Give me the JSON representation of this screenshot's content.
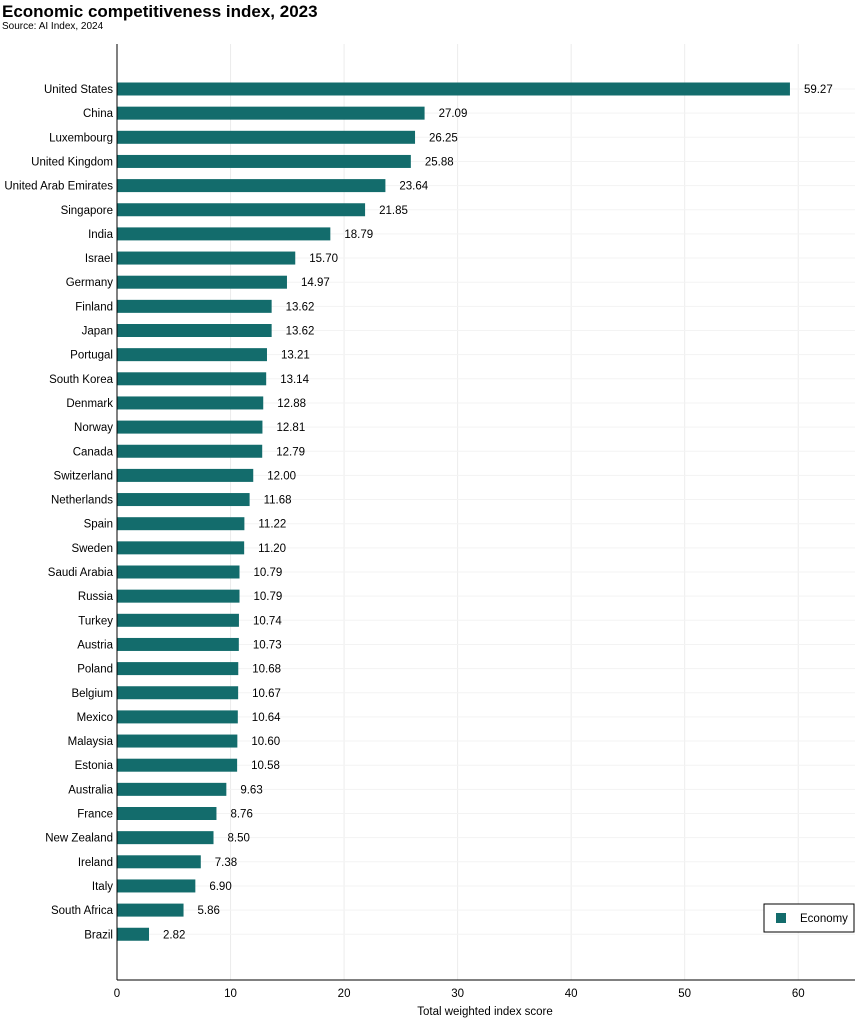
{
  "chart_data": {
    "type": "bar",
    "orientation": "horizontal",
    "title": "Economic competitiveness index, 2023",
    "subtitle": "Source: AI Index, 2024",
    "xlabel": "Total weighted index score",
    "ylabel": "",
    "xlim": [
      0,
      65
    ],
    "xticks": [
      0,
      10,
      20,
      30,
      40,
      50,
      60
    ],
    "grid": true,
    "legend_position": "bottom-right",
    "bar_color": "#136c6c",
    "categories": [
      "United States",
      "China",
      "Luxembourg",
      "United Kingdom",
      "United Arab Emirates",
      "Singapore",
      "India",
      "Israel",
      "Germany",
      "Finland",
      "Japan",
      "Portugal",
      "South Korea",
      "Denmark",
      "Norway",
      "Canada",
      "Switzerland",
      "Netherlands",
      "Spain",
      "Sweden",
      "Saudi Arabia",
      "Russia",
      "Turkey",
      "Austria",
      "Poland",
      "Belgium",
      "Mexico",
      "Malaysia",
      "Estonia",
      "Australia",
      "France",
      "New Zealand",
      "Ireland",
      "Italy",
      "South Africa",
      "Brazil"
    ],
    "series": [
      {
        "name": "Economy",
        "values": [
          59.27,
          27.09,
          26.25,
          25.88,
          23.64,
          21.85,
          18.79,
          15.7,
          14.97,
          13.62,
          13.62,
          13.21,
          13.14,
          12.88,
          12.81,
          12.79,
          12.0,
          11.68,
          11.22,
          11.2,
          10.79,
          10.79,
          10.74,
          10.73,
          10.68,
          10.67,
          10.64,
          10.6,
          10.58,
          9.63,
          8.76,
          8.5,
          7.38,
          6.9,
          5.86,
          2.82
        ],
        "labels": [
          "59.27",
          "27.09",
          "26.25",
          "25.88",
          "23.64",
          "21.85",
          "18.79",
          "15.70",
          "14.97",
          "13.62",
          "13.62",
          "13.21",
          "13.14",
          "12.88",
          "12.81",
          "12.79",
          "12.00",
          "11.68",
          "11.22",
          "11.20",
          "10.79",
          "10.79",
          "10.74",
          "10.73",
          "10.68",
          "10.67",
          "10.64",
          "10.60",
          "10.58",
          "9.63",
          "8.76",
          "8.50",
          "7.38",
          "6.90",
          "5.86",
          "2.82"
        ]
      }
    ]
  }
}
